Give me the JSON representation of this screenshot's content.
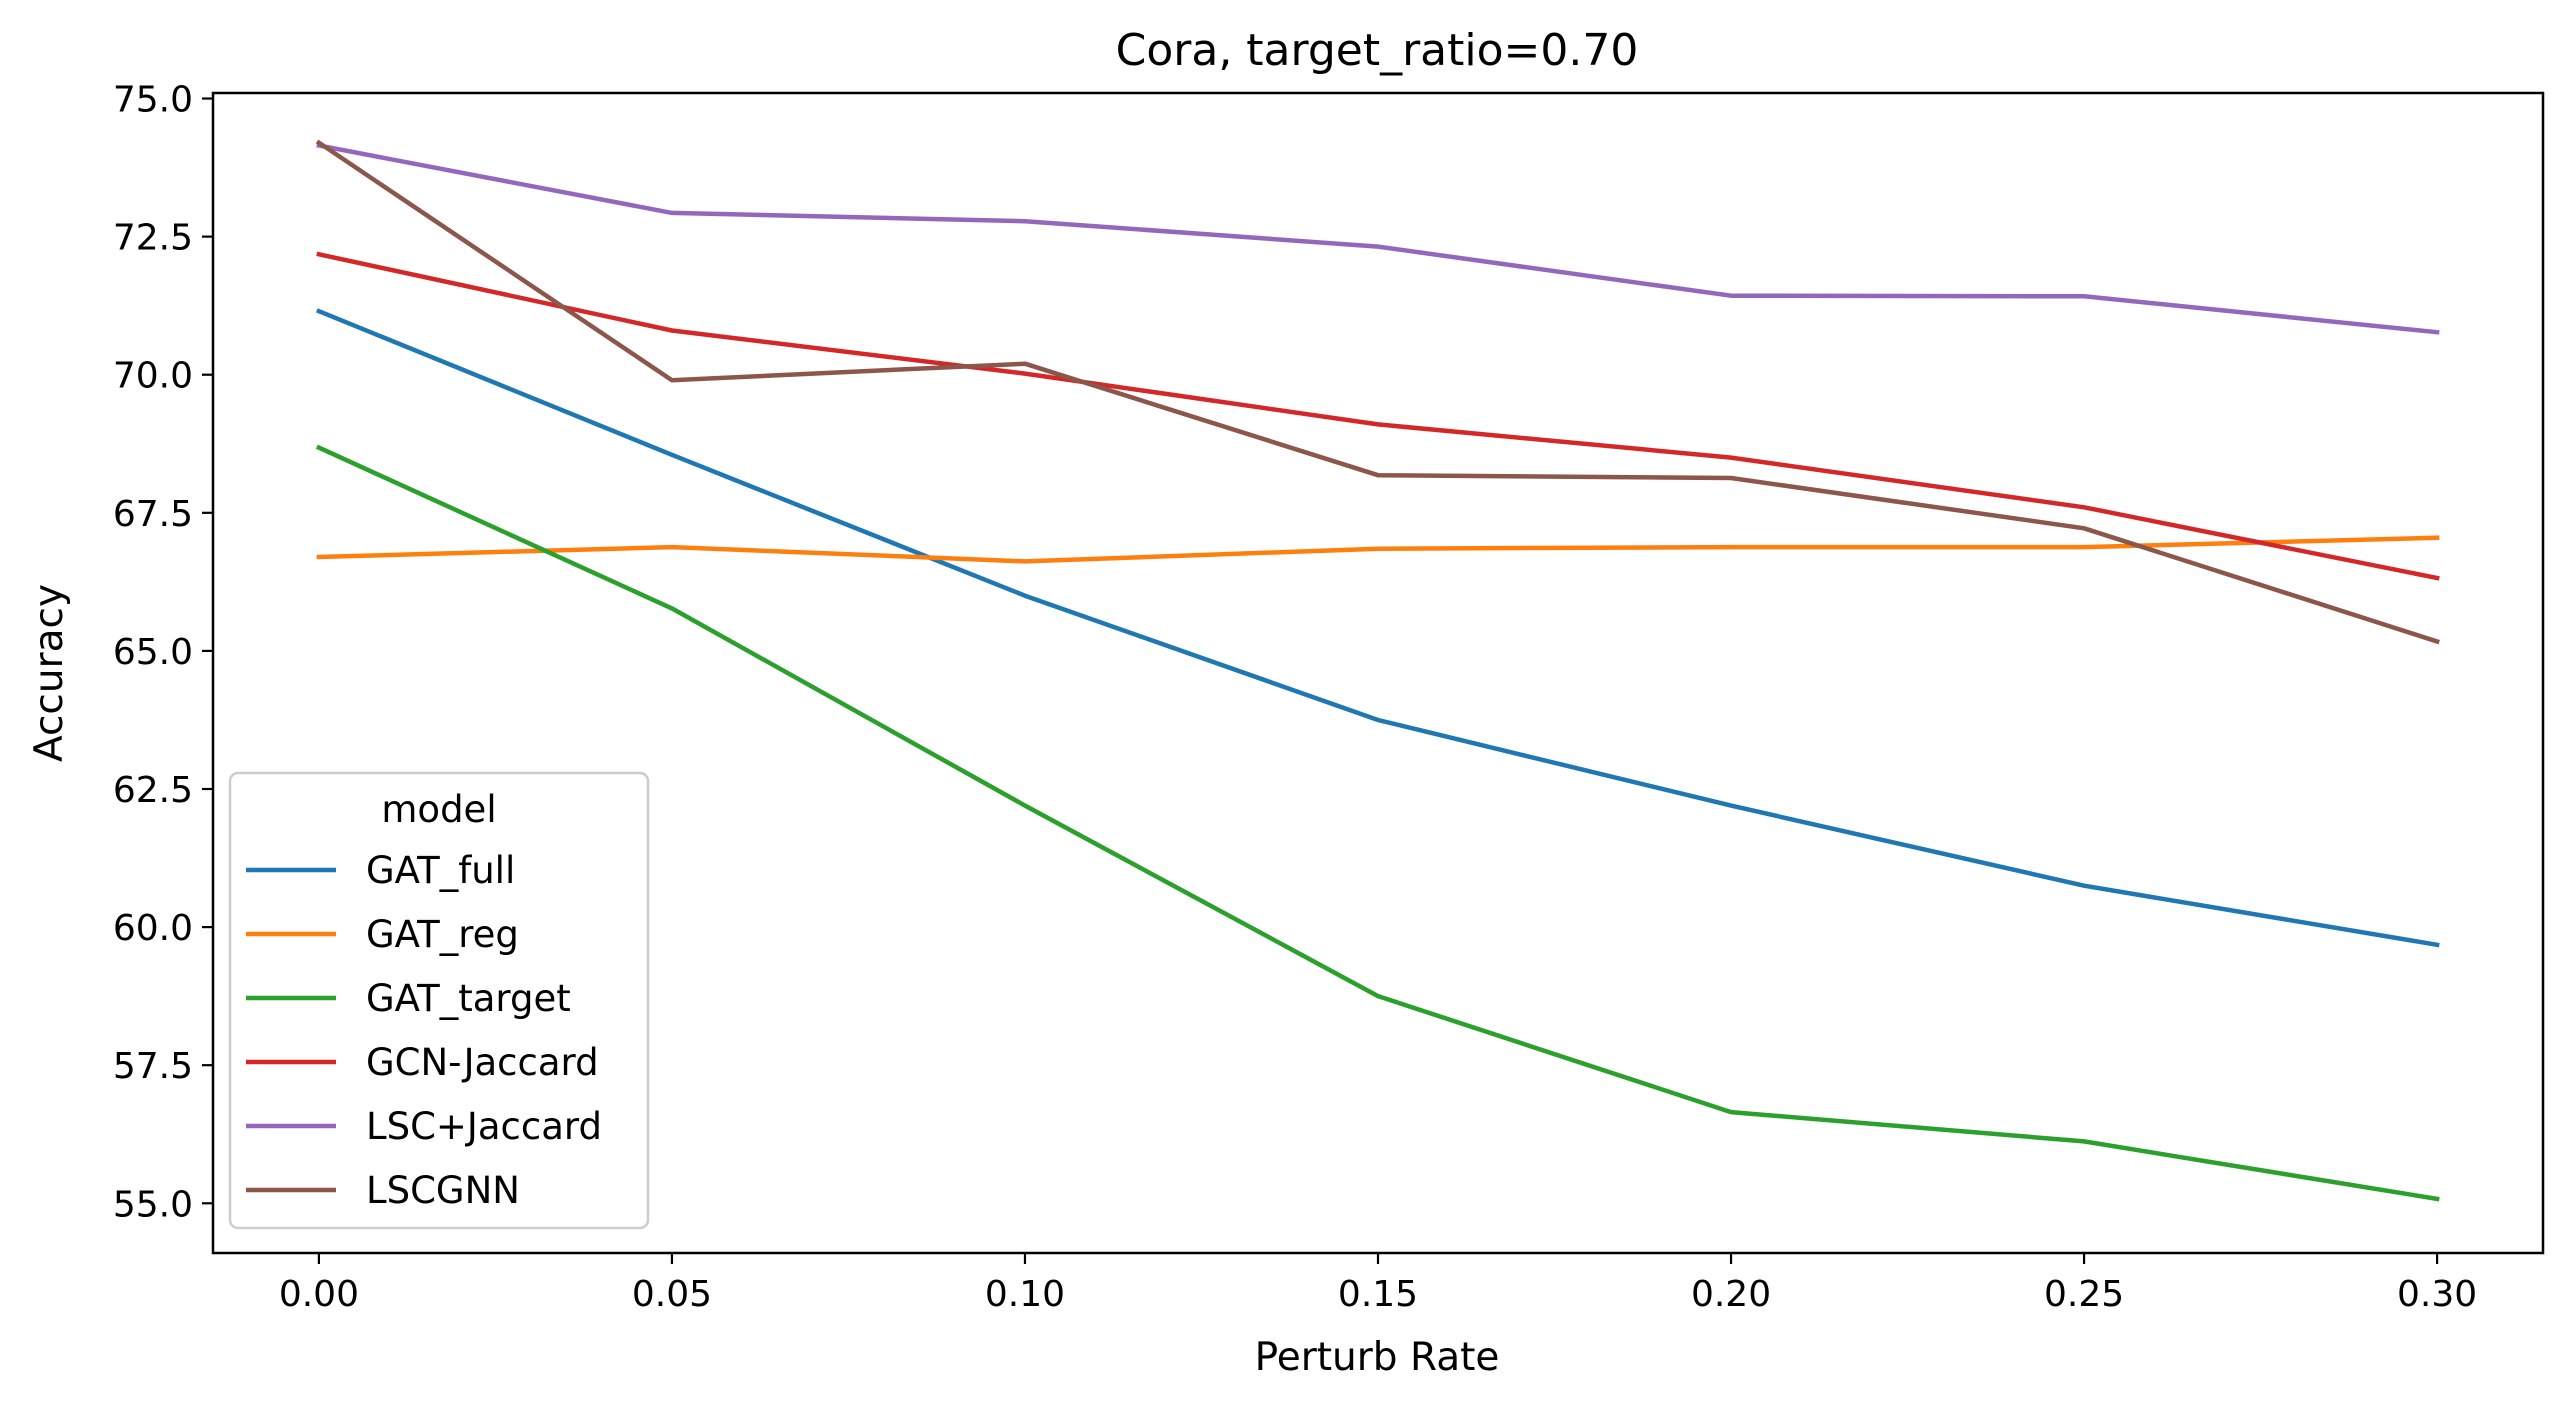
{
  "chart_data": {
    "type": "line",
    "title": "Cora, target_ratio=0.70",
    "xlabel": "Perturb Rate",
    "ylabel": "Accuracy",
    "x": [
      0.0,
      0.05,
      0.1,
      0.15,
      0.2,
      0.25,
      0.3
    ],
    "xticks": [
      "0.00",
      "0.05",
      "0.10",
      "0.15",
      "0.20",
      "0.25",
      "0.30"
    ],
    "xlim": [
      -0.015,
      0.315
    ],
    "yticks": [
      "55.0",
      "57.5",
      "60.0",
      "62.5",
      "65.0",
      "67.5",
      "70.0",
      "72.5",
      "75.0"
    ],
    "ylim": [
      54.1,
      75.1
    ],
    "grid": false,
    "legend": {
      "title": "model",
      "placement": "lower-left"
    },
    "series": [
      {
        "name": "GAT_full",
        "color": "#1f77b4",
        "values": [
          71.15,
          68.55,
          66.0,
          63.75,
          62.2,
          60.75,
          59.68
        ]
      },
      {
        "name": "GAT_reg",
        "color": "#ff7f0e",
        "values": [
          66.7,
          66.88,
          66.62,
          66.85,
          66.88,
          66.88,
          67.05
        ]
      },
      {
        "name": "GAT_target",
        "color": "#2ca02c",
        "values": [
          68.68,
          65.77,
          62.2,
          58.75,
          56.65,
          56.12,
          55.08
        ]
      },
      {
        "name": "GCN-Jaccard",
        "color": "#d62728",
        "values": [
          72.18,
          70.8,
          70.02,
          69.1,
          68.5,
          67.6,
          66.32
        ]
      },
      {
        "name": "LSC+Jaccard",
        "color": "#9467bd",
        "values": [
          74.15,
          72.93,
          72.78,
          72.32,
          71.43,
          71.42,
          70.77
        ]
      },
      {
        "name": "LSCGNN",
        "color": "#8c564b",
        "values": [
          74.2,
          69.9,
          70.2,
          68.18,
          68.13,
          67.22,
          65.17
        ]
      }
    ]
  }
}
